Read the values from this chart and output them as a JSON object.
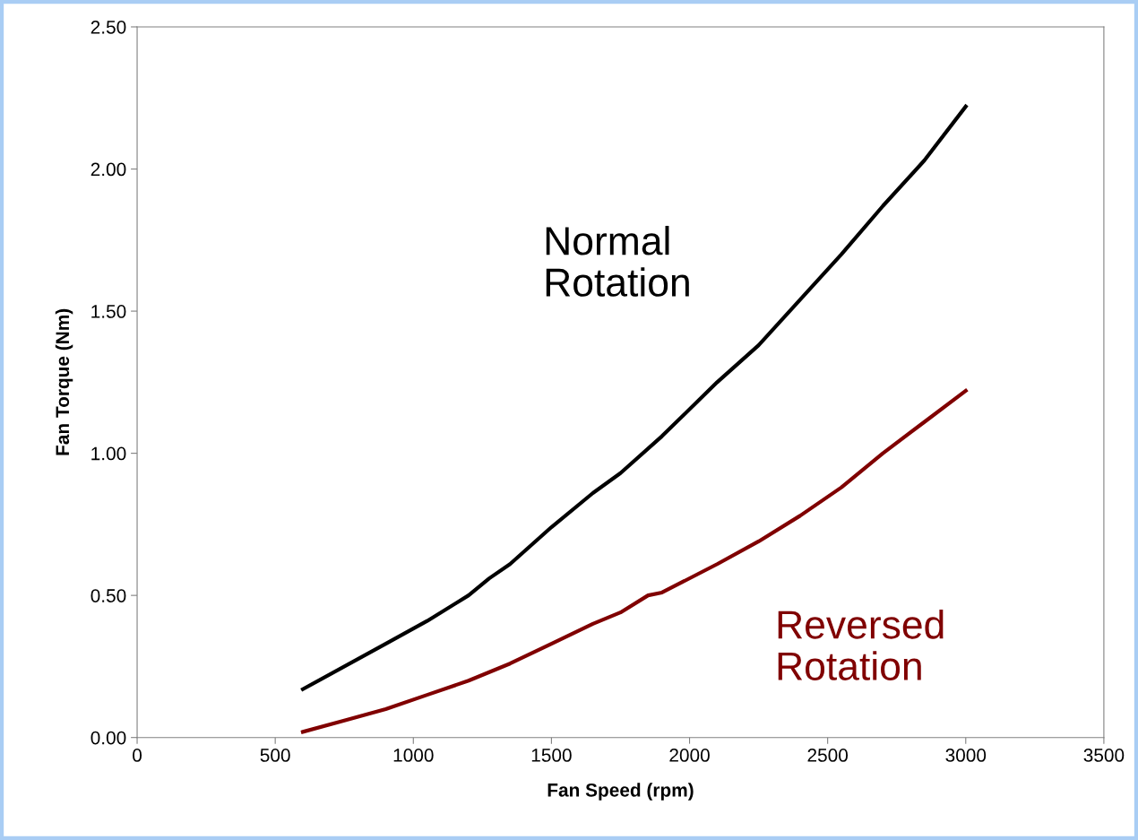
{
  "chart_data": {
    "type": "line",
    "xlabel": "Fan Speed (rpm)",
    "ylabel": "Fan Torque (Nm)",
    "xlim": [
      0,
      3500
    ],
    "xticks": [
      0,
      500,
      1000,
      1500,
      2000,
      2500,
      3000,
      3500
    ],
    "ylim": [
      0,
      2.5
    ],
    "yticks": [
      {
        "value": 0,
        "label": "0.00"
      },
      {
        "value": 0.5,
        "label": "0.50"
      },
      {
        "value": 1.0,
        "label": "1.00"
      },
      {
        "value": 1.5,
        "label": "1.50"
      },
      {
        "value": 2.0,
        "label": "2.00"
      },
      {
        "value": 2.5,
        "label": "2.50"
      }
    ],
    "grid": false,
    "legend": false,
    "marker": "none",
    "line_style": "solid",
    "series": [
      {
        "name": "Normal Rotation",
        "color": "#000000",
        "x": [
          600,
          900,
          1050,
          1200,
          1275,
          1350,
          1500,
          1650,
          1750,
          1900,
          2100,
          2250,
          2400,
          2550,
          2700,
          2850,
          3000
        ],
        "values": [
          0.17,
          0.33,
          0.41,
          0.5,
          0.56,
          0.61,
          0.74,
          0.86,
          0.93,
          1.06,
          1.25,
          1.38,
          1.54,
          1.7,
          1.87,
          2.03,
          2.22
        ]
      },
      {
        "name": "Reversed Rotation",
        "color": "#800000",
        "x": [
          600,
          750,
          900,
          1050,
          1200,
          1350,
          1500,
          1650,
          1750,
          1850,
          1900,
          2100,
          2250,
          2400,
          2550,
          2700,
          2850,
          3000
        ],
        "values": [
          0.02,
          0.06,
          0.1,
          0.15,
          0.2,
          0.26,
          0.33,
          0.4,
          0.44,
          0.5,
          0.51,
          0.61,
          0.69,
          0.78,
          0.88,
          1.0,
          1.11,
          1.22
        ]
      }
    ]
  }
}
